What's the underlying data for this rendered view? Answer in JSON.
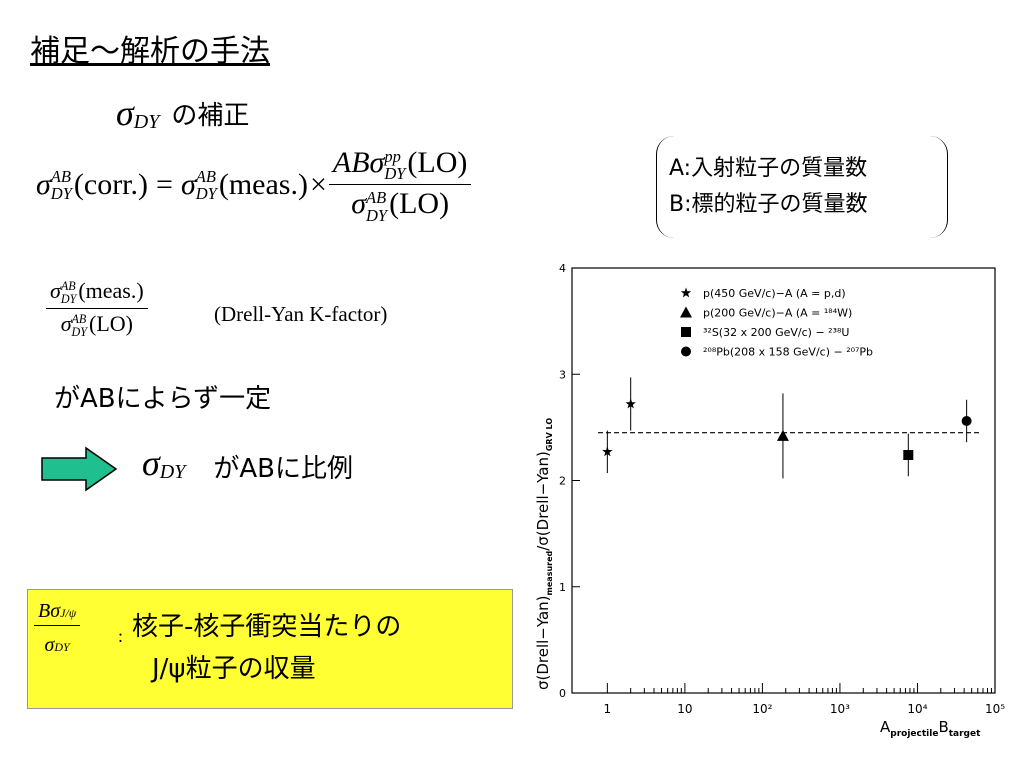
{
  "title": "補足～解析の手法",
  "section": {
    "sigma": "σ",
    "sub": "DY",
    "text": "の補正"
  },
  "formula": {
    "sigma": "σ",
    "ab_sup": "AB",
    "dy_sub": "DY",
    "pp_sup": "pp",
    "corr": "(corr.)",
    "meas": "(meas.)",
    "lo": "(LO)",
    "eq": "=",
    "times": "×",
    "ab": "AB"
  },
  "note": {
    "lines": [
      "A:入射粒子の質量数",
      "B:標的粒子の質量数"
    ]
  },
  "kfactor": {
    "label": "(Drell-Yan K-factor)"
  },
  "statement": "がABによらず一定",
  "conclusion": {
    "sigma": "σ",
    "sub": "DY",
    "text": "がABに比例"
  },
  "yield_box": {
    "b": "B",
    "sigma": "σ",
    "jpsi_sub": "J/ψ",
    "dy_sub": "DY",
    "colon": ":",
    "line1": "核子-核子衝突当たりの",
    "line2": "J/ψ粒子の収量"
  },
  "chart_data": {
    "type": "scatter",
    "xlabel": [
      "A",
      "projectile",
      "B",
      "target"
    ],
    "ylabel": [
      "σ(Drell−Yan)",
      "measured",
      "/σ(Drell−Yan)",
      "GRV LO"
    ],
    "log_x": true,
    "xlim": [
      0.35,
      100000
    ],
    "xticks": [
      1,
      10,
      {
        "value": 100,
        "label": "10²"
      },
      {
        "value": 1000,
        "label": "10³"
      },
      {
        "value": 10000,
        "label": "10⁴"
      },
      {
        "value": 100000,
        "label": "10⁵"
      }
    ],
    "ylim": [
      0,
      4
    ],
    "yticks": [
      0,
      1,
      2,
      3,
      4
    ],
    "reference_line": 2.45,
    "series": [
      {
        "name": "p(450 GeV/c)−A (A = p,d)",
        "marker": "star",
        "color": "#000000",
        "x": [
          1,
          2
        ],
        "values": [
          2.27,
          2.72
        ],
        "errors": [
          0.2,
          0.25
        ]
      },
      {
        "name": "p(200 GeV/c)−A (A = ¹⁸⁴W)",
        "marker": "triangle",
        "color": "#000000",
        "x": [
          184
        ],
        "values": [
          2.42
        ],
        "errors": [
          0.4
        ]
      },
      {
        "name": "³²S(32 x 200 GeV/c) − ²³⁸U",
        "marker": "square",
        "color": "#000000",
        "x": [
          7616
        ],
        "values": [
          2.24
        ],
        "errors": [
          0.2
        ]
      },
      {
        "name": "²⁰⁸Pb(208 x 158 GeV/c) − ²⁰⁷Pb",
        "marker": "circle",
        "color": "#000000",
        "x": [
          43056
        ],
        "values": [
          2.56
        ],
        "errors": [
          0.2
        ]
      }
    ]
  }
}
